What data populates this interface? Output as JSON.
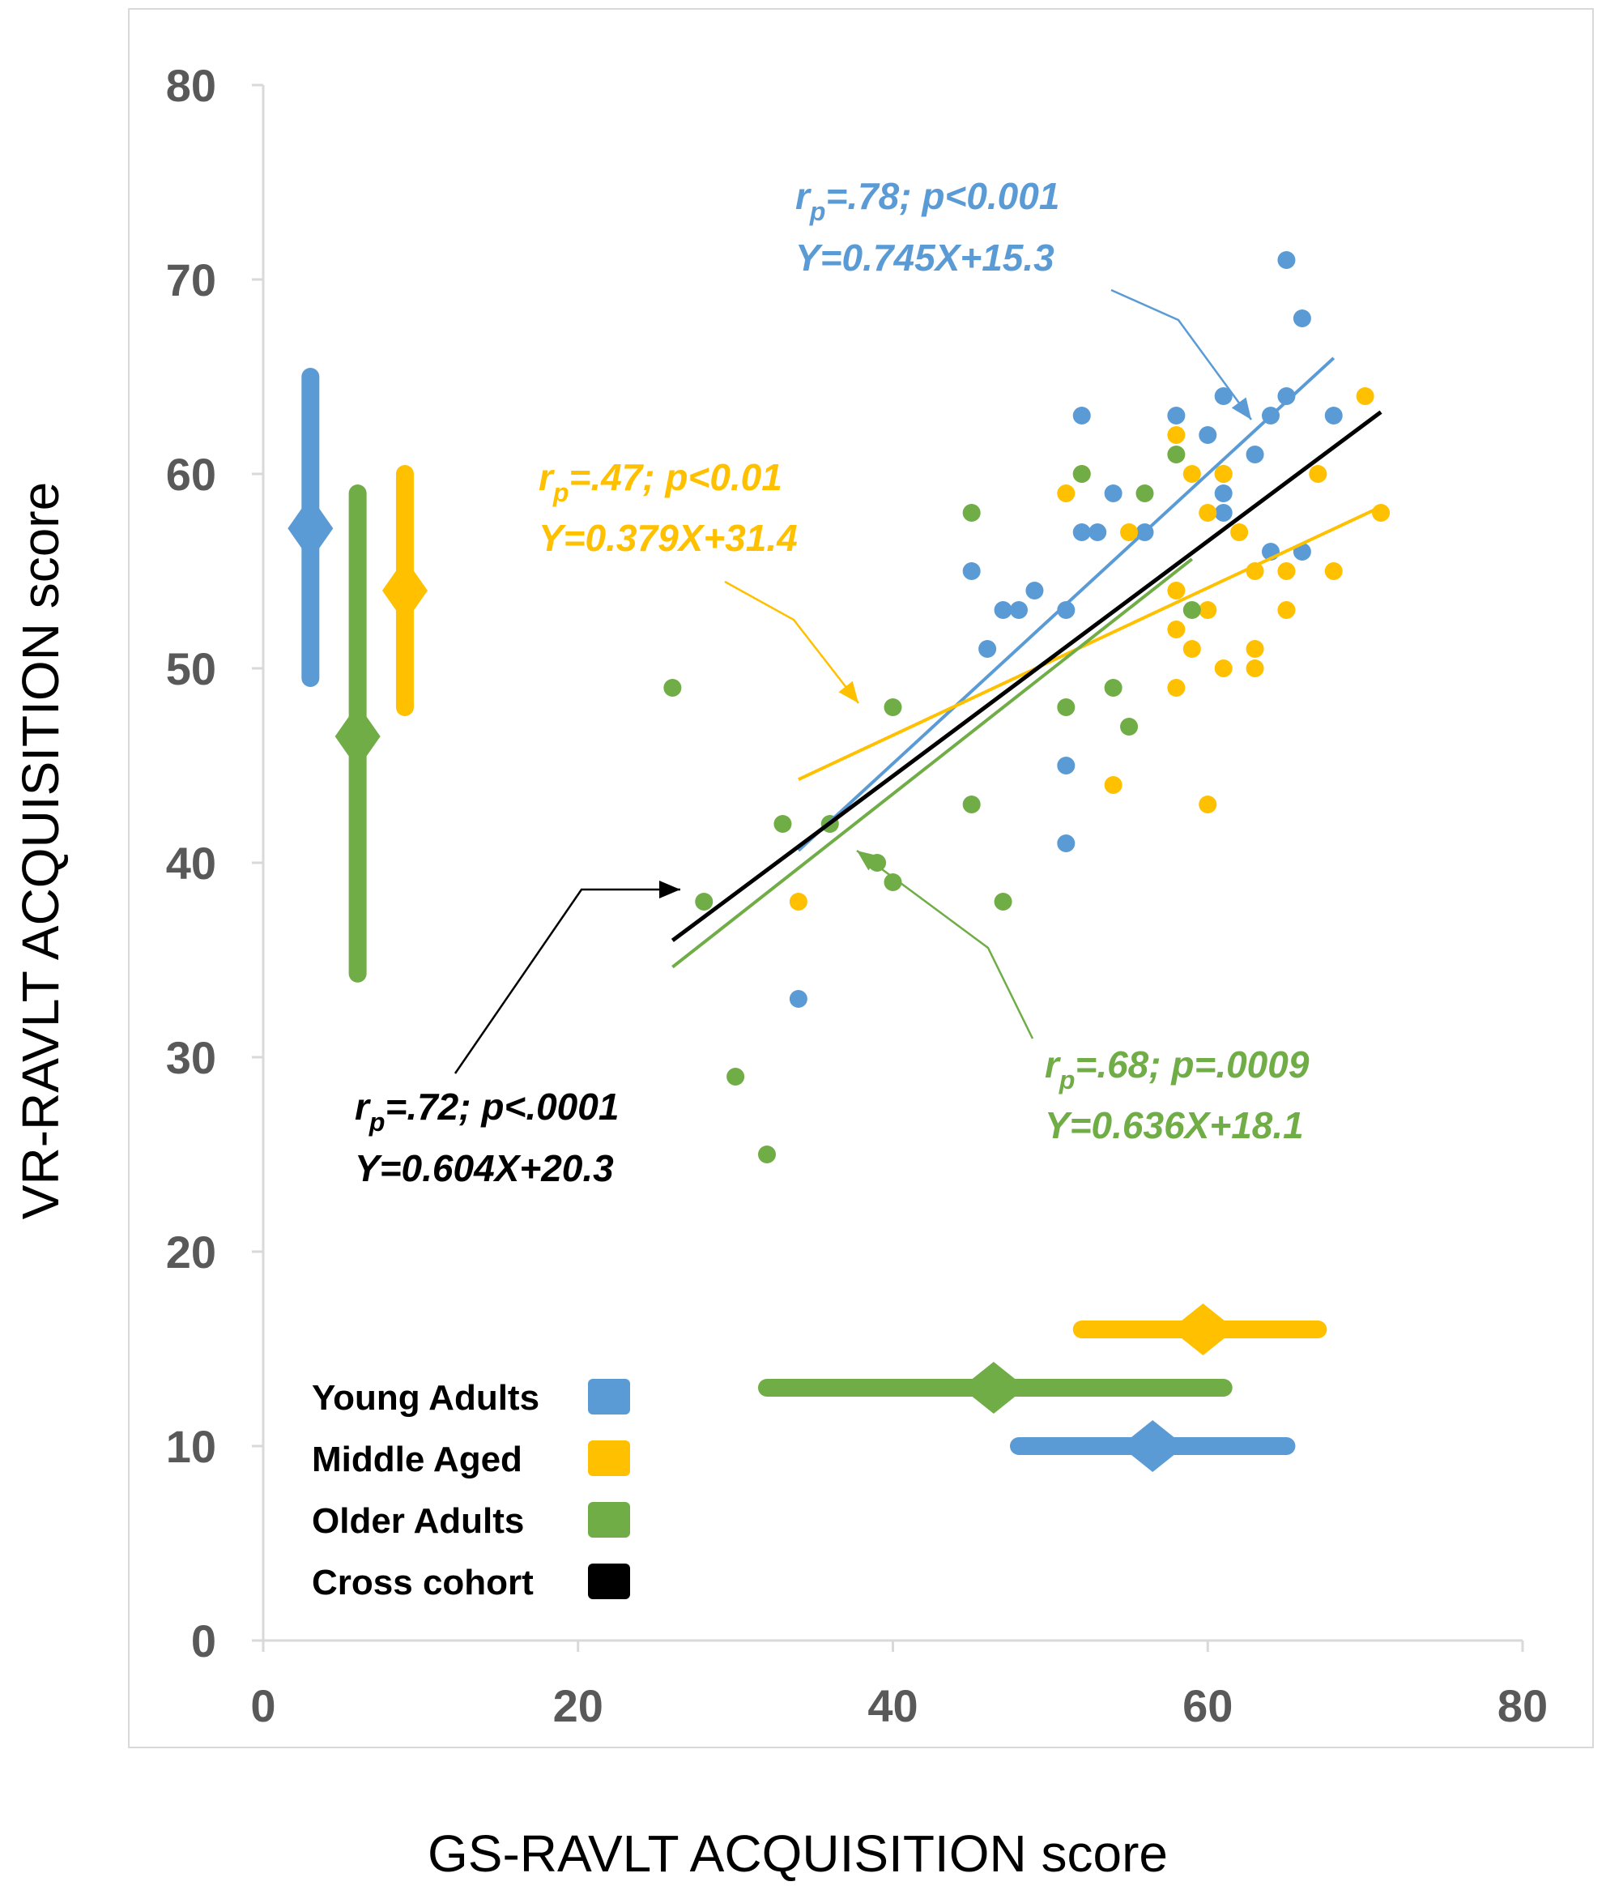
{
  "chart_data": {
    "type": "scatter",
    "title": "",
    "xlabel": "GS-RAVLT ACQUISITION score",
    "ylabel": "VR-RAVLT ACQUISITION score",
    "xlim": [
      0,
      80
    ],
    "ylim": [
      0,
      80
    ],
    "x_ticks": [
      "0",
      "20",
      "40",
      "60",
      "80"
    ],
    "y_ticks": [
      "0",
      "10",
      "20",
      "30",
      "40",
      "50",
      "60",
      "70",
      "80"
    ],
    "grid": false,
    "legend_position": "bottom-left",
    "series": [
      {
        "name": "Young Adults",
        "color": "#5b9bd5",
        "points": [
          [
            34,
            33
          ],
          [
            45,
            55
          ],
          [
            46,
            51
          ],
          [
            47,
            53
          ],
          [
            48,
            53
          ],
          [
            49,
            54
          ],
          [
            51,
            53
          ],
          [
            51,
            45
          ],
          [
            51,
            41
          ],
          [
            52,
            57
          ],
          [
            52,
            63
          ],
          [
            53,
            57
          ],
          [
            54,
            59
          ],
          [
            56,
            57
          ],
          [
            58,
            63
          ],
          [
            60,
            62
          ],
          [
            61,
            64
          ],
          [
            61,
            60
          ],
          [
            61,
            59
          ],
          [
            61,
            58
          ],
          [
            63,
            61
          ],
          [
            64,
            63
          ],
          [
            64,
            56
          ],
          [
            65,
            64
          ],
          [
            65,
            71
          ],
          [
            66,
            68
          ],
          [
            66,
            56
          ],
          [
            68,
            63
          ]
        ],
        "fit": {
          "slope": 0.745,
          "intercept": 15.3,
          "x_range": [
            34,
            68
          ]
        },
        "stats_line1": "=.78; p<0.001",
        "equation": "Y=0.745X+15.3",
        "mean_x": 56.5,
        "sd_x_range": [
          48,
          65
        ],
        "mean_y": 57.2,
        "sd_y_range": [
          49.5,
          65
        ]
      },
      {
        "name": "Middle Aged",
        "color": "#ffc000",
        "points": [
          [
            34,
            38
          ],
          [
            51,
            59
          ],
          [
            52,
            60
          ],
          [
            54,
            44
          ],
          [
            55,
            57
          ],
          [
            58,
            62
          ],
          [
            58,
            54
          ],
          [
            58,
            52
          ],
          [
            58,
            49
          ],
          [
            59,
            60
          ],
          [
            59,
            51
          ],
          [
            60,
            58
          ],
          [
            60,
            53
          ],
          [
            60,
            43
          ],
          [
            61,
            60
          ],
          [
            61,
            50
          ],
          [
            62,
            57
          ],
          [
            63,
            55
          ],
          [
            63,
            51
          ],
          [
            63,
            50
          ],
          [
            65,
            55
          ],
          [
            65,
            53
          ],
          [
            67,
            60
          ],
          [
            68,
            55
          ],
          [
            70,
            64
          ],
          [
            71,
            58
          ]
        ],
        "fit": {
          "slope": 0.379,
          "intercept": 31.4,
          "x_range": [
            34,
            71
          ]
        },
        "stats_line1": "=.47; p<0.01",
        "equation": "Y=0.379X+31.4",
        "mean_x": 59.7,
        "sd_x_range": [
          52,
          67
        ],
        "mean_y": 54,
        "sd_y_range": [
          48,
          60
        ]
      },
      {
        "name": "Older Adults",
        "color": "#70ad47",
        "points": [
          [
            26,
            49
          ],
          [
            28,
            38
          ],
          [
            30,
            29
          ],
          [
            32,
            25
          ],
          [
            33,
            42
          ],
          [
            36,
            42
          ],
          [
            39,
            40
          ],
          [
            40,
            39
          ],
          [
            40,
            48
          ],
          [
            45,
            58
          ],
          [
            45,
            43
          ],
          [
            47,
            38
          ],
          [
            51,
            48
          ],
          [
            52,
            60
          ],
          [
            54,
            49
          ],
          [
            55,
            47
          ],
          [
            56,
            59
          ],
          [
            58,
            61
          ],
          [
            59,
            53
          ]
        ],
        "fit": {
          "slope": 0.636,
          "intercept": 18.1,
          "x_range": [
            26,
            59
          ]
        },
        "stats_line1": "=.68; p=.0009",
        "equation": "Y=0.636X+18.1",
        "mean_x": 46.4,
        "sd_x_range": [
          32,
          61
        ],
        "mean_y": 46.5,
        "sd_y_range": [
          34.3,
          59
        ]
      },
      {
        "name": "Cross cohort",
        "color": "#000000",
        "points": [],
        "fit": {
          "slope": 0.604,
          "intercept": 20.3,
          "x_range": [
            26,
            71
          ]
        },
        "stats_line1": "=.72; p<.0001",
        "equation": "Y=0.604X+20.3"
      }
    ],
    "annotation_symbol": "r",
    "annotation_subscript": "p"
  }
}
